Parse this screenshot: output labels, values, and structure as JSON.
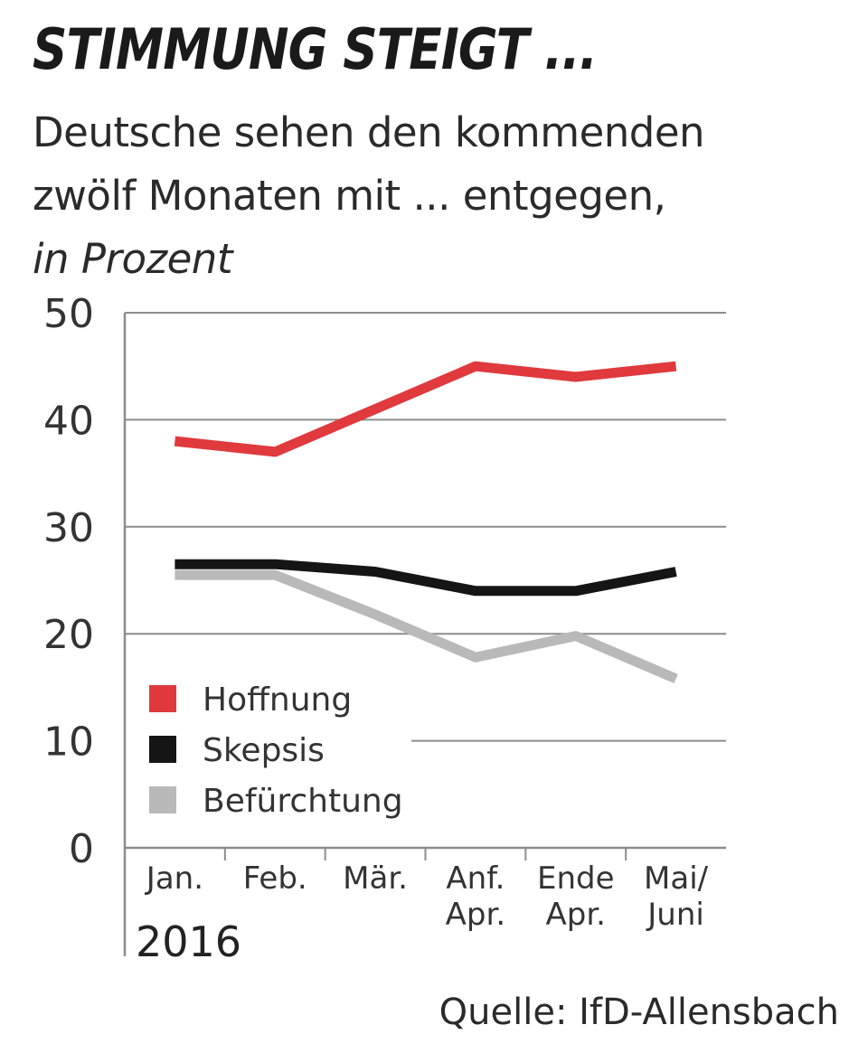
{
  "header": {
    "title": "STIMMUNG STEIGT ...",
    "subtitle_line1": "Deutsche sehen den kommenden",
    "subtitle_line2": "zwölf Monaten mit ... entgegen,",
    "subtitle_unit": "in Prozent"
  },
  "footer": {
    "source": "Quelle: IfD-Allensbach"
  },
  "chart_data": {
    "type": "line",
    "title": "STIMMUNG STEIGT ...",
    "subtitle": "Deutsche sehen den kommenden zwölf Monaten mit ... entgegen, in Prozent",
    "categories": [
      [
        "Jan."
      ],
      [
        "Feb."
      ],
      [
        "Mär."
      ],
      [
        "Anf.",
        "Apr."
      ],
      [
        "Ende",
        "Apr."
      ],
      [
        "Mai/",
        "Juni"
      ]
    ],
    "year_label": "2016",
    "xlabel": "",
    "ylabel": "",
    "ylim": [
      0,
      50
    ],
    "yticks": [
      0,
      10,
      20,
      30,
      40,
      50
    ],
    "grid": true,
    "legend_position": "bottom-left",
    "series": [
      {
        "name": "Hoffnung",
        "color": "#e0393e",
        "values": [
          38,
          37,
          41,
          45,
          44,
          45
        ]
      },
      {
        "name": "Skepsis",
        "color": "#151515",
        "values": [
          26.5,
          26.5,
          25.8,
          24,
          24,
          25.8
        ]
      },
      {
        "name": "Befürchtung",
        "color": "#b9b9b9",
        "values": [
          25.5,
          25.5,
          21.8,
          17.8,
          19.8,
          15.8
        ]
      }
    ],
    "source": "Quelle: IfD-Allensbach"
  }
}
